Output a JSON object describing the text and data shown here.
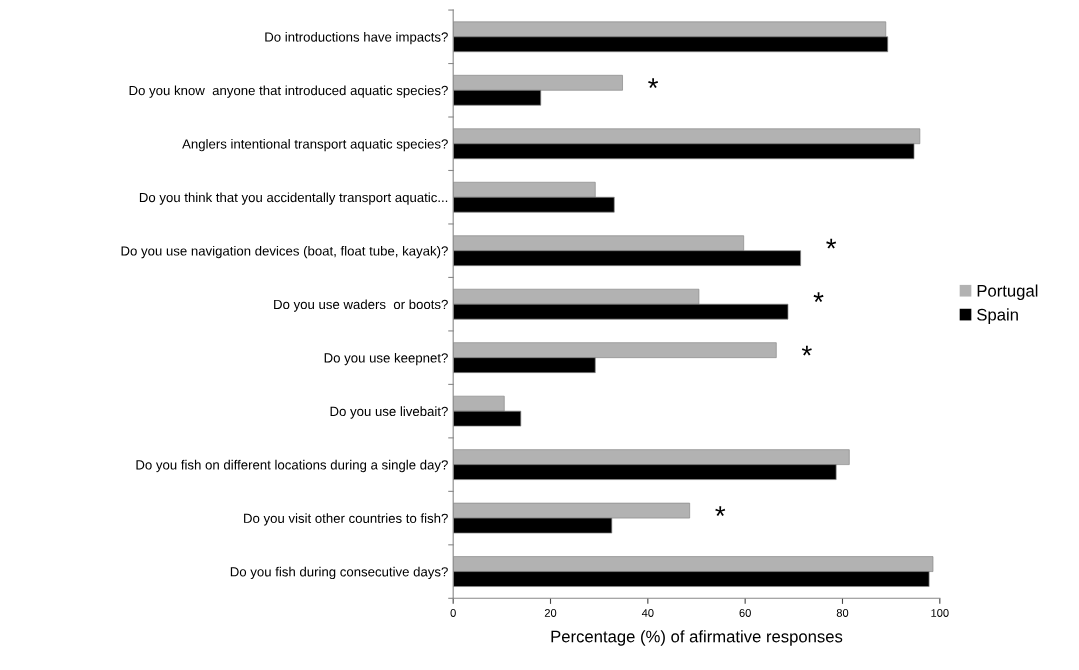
{
  "chart_data": {
    "type": "bar",
    "orientation": "horizontal",
    "xlabel": "Percentage (%) of afirmative responses",
    "categories": [
      "Do introductions have impacts?",
      "Do you know  anyone that introduced aquatic species?",
      "Anglers intentional transport aquatic species?",
      "Do you think that you accidentally transport aquatic...",
      "Do you use navigation devices (boat, float tube, kayak)?",
      "Do you use waders  or boots?",
      "Do you use keepnet?",
      "Do you use livebait?",
      "Do you fish on different locations during a single day?",
      "Do you visit other countries to fish?",
      "Do you fish during consecutive days?"
    ],
    "series": [
      {
        "name": "Portugal",
        "color": "#b2b2b2",
        "values": [
          88.9,
          34.8,
          95.9,
          29.2,
          59.7,
          50.5,
          66.4,
          10.5,
          81.4,
          48.6,
          98.6
        ]
      },
      {
        "name": "Spain",
        "color": "#000000",
        "values": [
          89.3,
          18.0,
          94.7,
          33.1,
          71.4,
          68.8,
          29.2,
          13.9,
          78.7,
          32.6,
          97.8
        ]
      }
    ],
    "xlim": [
      0,
      100
    ],
    "xticks": [
      0,
      20,
      40,
      60,
      80,
      100
    ],
    "annotations": [
      {
        "text": "*",
        "x": 34.8,
        "y": "Do you know  anyone that introduced aquatic species?"
      },
      {
        "text": "*",
        "x": 71.4,
        "y": "Do you use navigation devices (boat, float tube, kayak)?"
      },
      {
        "text": "*",
        "x": 68.8,
        "y": "Do you use waders  or boots?"
      },
      {
        "text": "*",
        "x": 66.4,
        "y": "Do you use keepnet?"
      },
      {
        "text": "*",
        "x": 48.6,
        "y": "Do you visit other countries to fish?"
      }
    ],
    "grid": false,
    "legend": "right"
  }
}
